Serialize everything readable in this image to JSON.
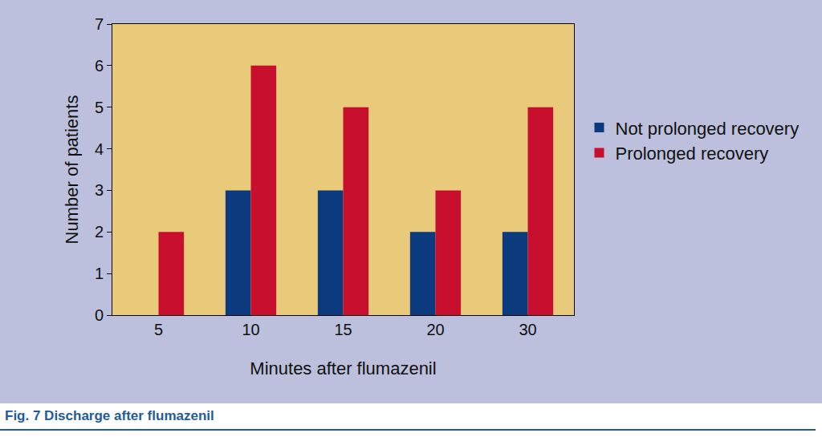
{
  "chart_data": {
    "type": "bar",
    "title": "Fig. 7 Discharge after flumazenil",
    "x_label": "Minutes after flumazenil",
    "y_label": "Number of patients",
    "categories": [
      "5",
      "10",
      "15",
      "20",
      "30"
    ],
    "series": [
      {
        "name": "Not prolonged recovery",
        "color": "#0b3a7e",
        "values": [
          0,
          3,
          3,
          2,
          2
        ]
      },
      {
        "name": "Prolonged recovery",
        "color": "#c8102e",
        "values": [
          2,
          6,
          5,
          3,
          5
        ]
      }
    ],
    "ylim": [
      0,
      7
    ],
    "yticks": [
      0,
      1,
      2,
      3,
      4,
      5,
      6,
      7
    ],
    "grid": false,
    "legend": "right"
  }
}
